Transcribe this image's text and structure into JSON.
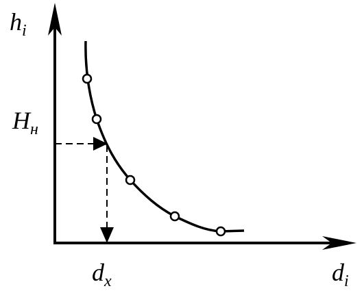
{
  "y_axis_label": {
    "main": "h",
    "sub": "i"
  },
  "x_axis_label": {
    "main": "d",
    "sub": "i"
  },
  "level_label": {
    "main": "H",
    "sub": "н"
  },
  "result_label": {
    "main": "d",
    "sub": "x"
  }
}
